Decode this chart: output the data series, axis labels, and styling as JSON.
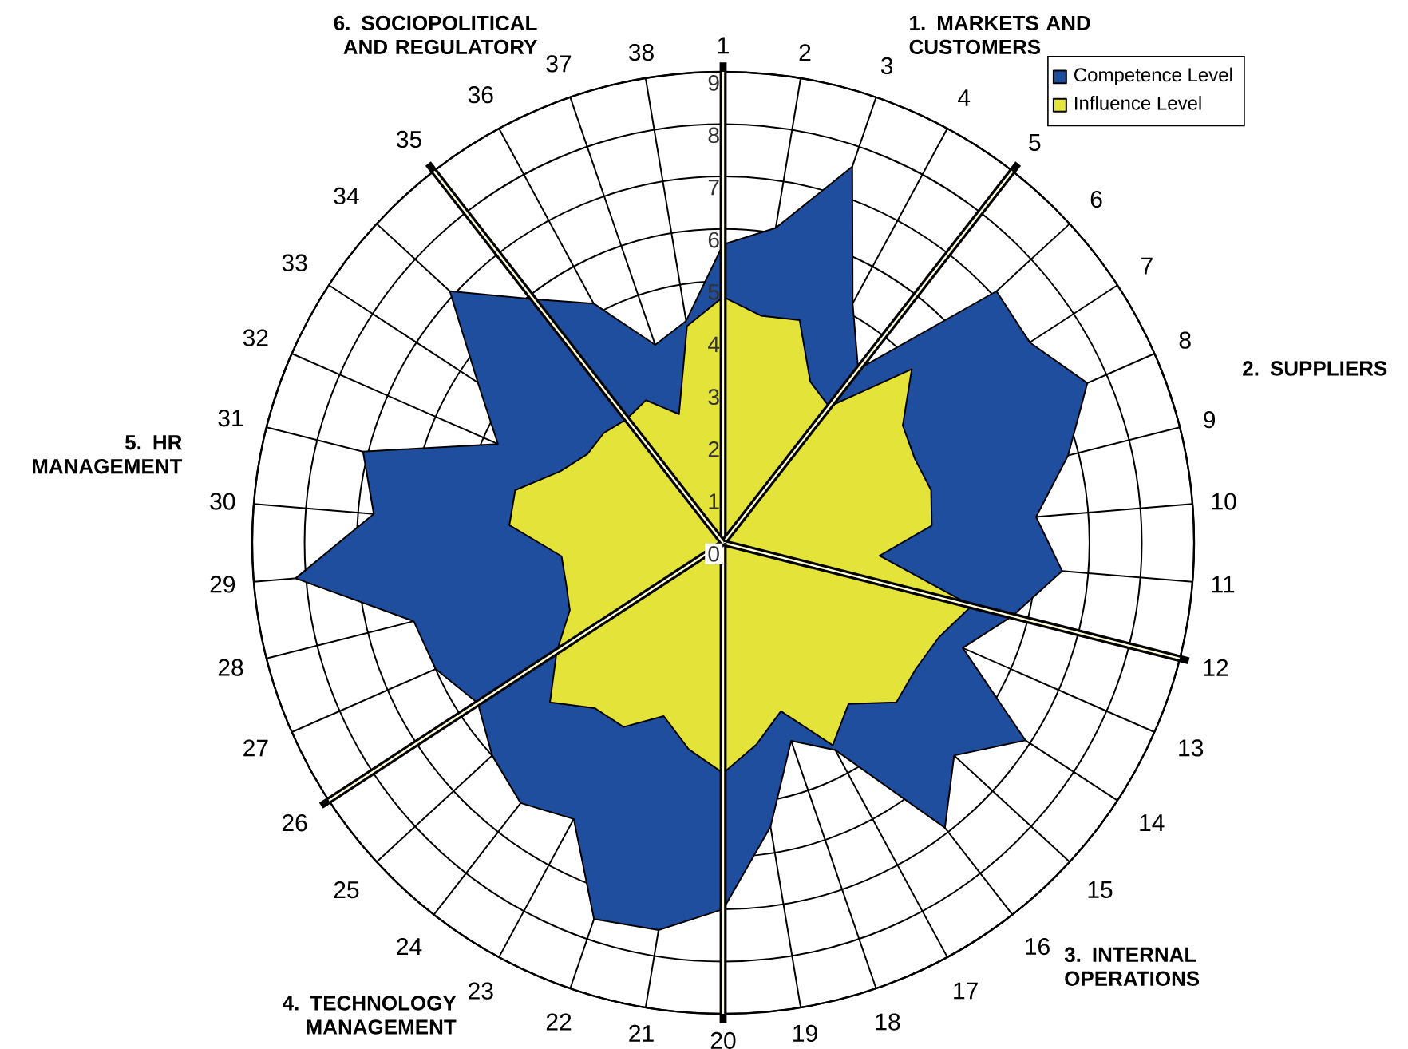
{
  "chart_data": {
    "type": "radar",
    "categories": [
      "1",
      "2",
      "3",
      "4",
      "5",
      "6",
      "7",
      "8",
      "9",
      "10",
      "11",
      "12",
      "13",
      "14",
      "15",
      "16",
      "17",
      "18",
      "19",
      "20",
      "21",
      "22",
      "23",
      "24",
      "25",
      "26",
      "27",
      "28",
      "29",
      "30",
      "31",
      "32",
      "33",
      "34",
      "35",
      "36",
      "37",
      "38"
    ],
    "series": [
      {
        "name": "Competence Level",
        "color": "#1f4e9f",
        "values": [
          5.7,
          6.1,
          7.6,
          5.2,
          4.2,
          7.1,
          7.0,
          7.6,
          6.8,
          6.0,
          6.5,
          5.7,
          5.0,
          6.9,
          6.0,
          6.9,
          4.5,
          4.0,
          5.5,
          7.0,
          7.5,
          7.6,
          6.0,
          6.3,
          6.0,
          5.6,
          6.0,
          6.1,
          8.2,
          6.7,
          7.1,
          4.7,
          5.6,
          7.1,
          5.9,
          5.2,
          4.0,
          4.3
        ]
      },
      {
        "name": "Influence Level",
        "color": "#e3e33a",
        "values": [
          4.7,
          4.4,
          4.5,
          3.5,
          3.3,
          4.9,
          4.1,
          4.0,
          4.1,
          4.0,
          3.0,
          4.9,
          4.5,
          4.4,
          4.5,
          3.9,
          4.4,
          3.4,
          3.9,
          4.4,
          4.0,
          3.5,
          4.0,
          4.0,
          4.5,
          3.8,
          3.2,
          3.1,
          3.1,
          4.1,
          4.1,
          3.4,
          3.1,
          3.1,
          3.0,
          3.1,
          2.6,
          4.2
        ]
      }
    ],
    "ylim": [
      0,
      9
    ],
    "yticks": [
      0,
      1,
      2,
      3,
      4,
      5,
      6,
      7,
      8,
      9
    ],
    "grid": true,
    "legend": "top right",
    "marker": "none",
    "annotations": [
      {
        "text": "1. MARKETS AND CUSTOMERS",
        "x": "1"
      },
      {
        "text": "2. SUPPLIERS",
        "x": "5"
      },
      {
        "text": "3. INTERNAL OPERATIONS",
        "x": "12"
      },
      {
        "text": "4. TECHNOLOGY MANAGEMENT",
        "x": "20"
      },
      {
        "text": "5. HR MANAGEMENT",
        "x": "26"
      },
      {
        "text": "6. SOCIOPOLITICAL AND REGULATORY",
        "x": "35"
      }
    ]
  }
}
